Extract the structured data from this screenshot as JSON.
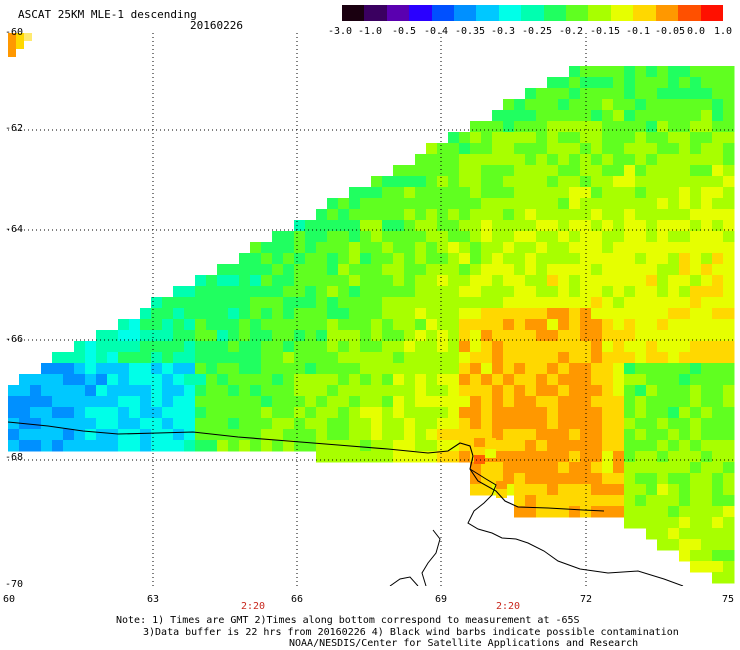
{
  "header": {
    "title": "ASCAT 25KM MLE-1 descending",
    "date": "20160226"
  },
  "colorbar": {
    "colors": [
      "#1a0010",
      "#3a0060",
      "#5a00b0",
      "#2a00ff",
      "#0050ff",
      "#0090ff",
      "#00c8ff",
      "#00ffe8",
      "#00ffb0",
      "#20ff60",
      "#60ff20",
      "#a8ff00",
      "#e6ff00",
      "#ffd800",
      "#ff9800",
      "#ff5000",
      "#ff1000"
    ],
    "ticks": [
      "-3.0",
      "-1.0",
      "-0.5",
      "-0.4",
      "-0.35",
      "-0.3",
      "-0.25",
      "-0.2",
      "-0.15",
      "-0.1",
      "-0.05",
      "0.0",
      "1.0"
    ]
  },
  "map": {
    "lat_labels": [
      "-60",
      "-62",
      "-64",
      "-66",
      "-68",
      "-70"
    ],
    "lon_labels": [
      "60",
      "63",
      "66",
      "69",
      "72",
      "75"
    ],
    "time_labels": [
      "2:20",
      "2:20"
    ]
  },
  "footer": {
    "line1": "Note: 1) Times are GMT 2)Times along bottom correspond to measurement at -65S",
    "line2": "3)Data buffer is 22 hrs from 20160226 4) Black wind barbs indicate possible contamination",
    "line3": "NOAA/NESDIS/Center for Satellite Applications and Research"
  }
}
